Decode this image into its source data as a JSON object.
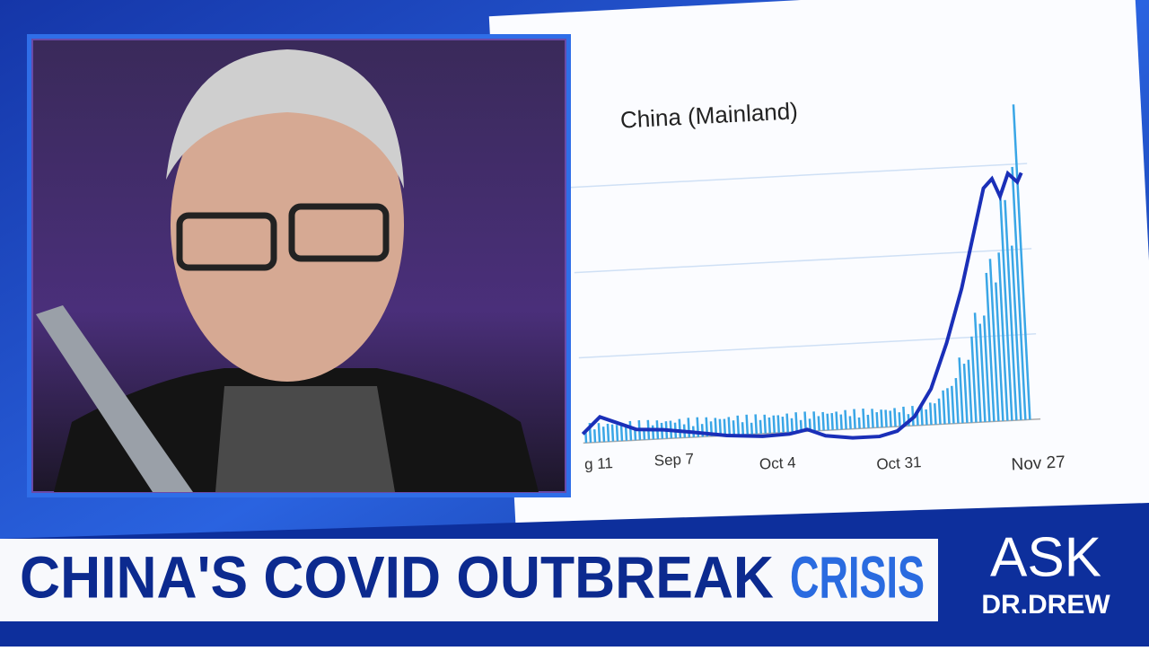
{
  "chart": {
    "title": "China (Mainland)",
    "x_labels": [
      "g 11",
      "Sep 7",
      "Oct 4",
      "Oct 31",
      "Nov 27"
    ]
  },
  "banner": {
    "title_main": "CHINA'S COVID OUTBREAK",
    "title_accent": "CRISIS"
  },
  "logo": {
    "top": "ASK",
    "bottom": "DR.DREW"
  }
}
